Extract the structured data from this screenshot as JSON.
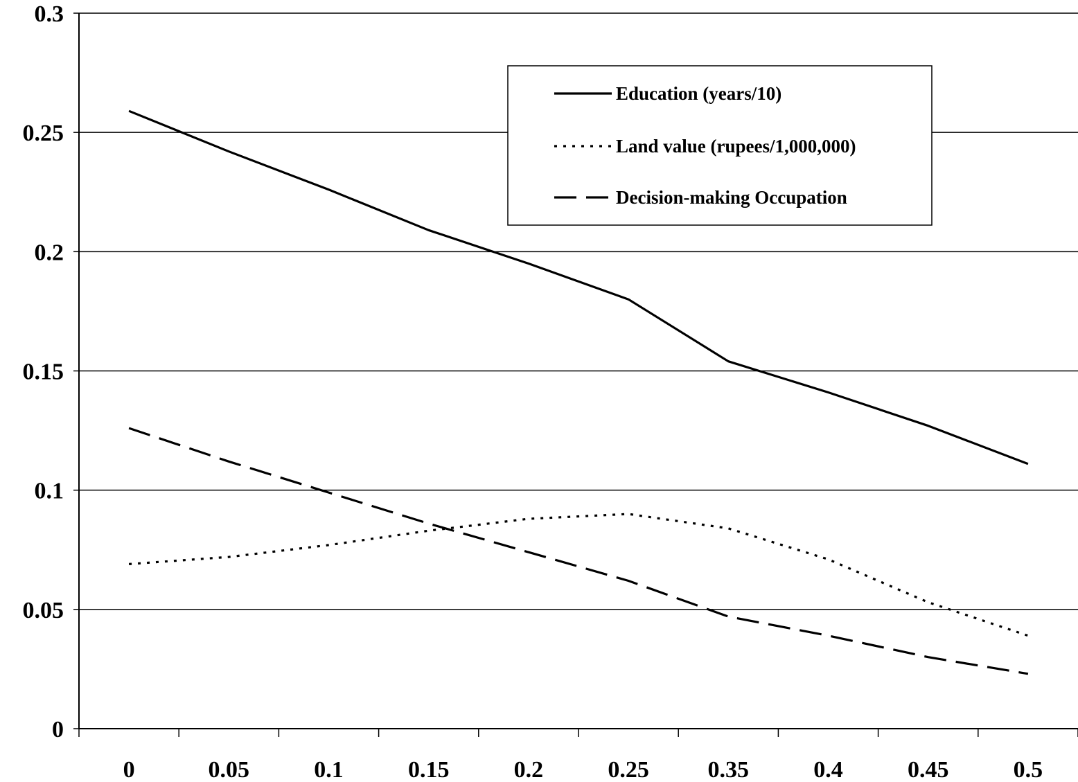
{
  "chart_data": {
    "type": "line",
    "title": "",
    "xlabel": "",
    "ylabel": "",
    "categories": [
      "0",
      "0.05",
      "0.1",
      "0.15",
      "0.2",
      "0.25",
      "0.35",
      "0.4",
      "0.45",
      "0.5"
    ],
    "yticks": [
      "0",
      "0.05",
      "0.1",
      "0.15",
      "0.2",
      "0.25",
      "0.3"
    ],
    "ylim": [
      0,
      0.3
    ],
    "grid": "horizontal",
    "legend_position": "top-right",
    "series": [
      {
        "name": "Education (years/10)",
        "style": "solid",
        "color": "#000000",
        "values": [
          0.259,
          0.242,
          0.226,
          0.209,
          0.195,
          0.18,
          0.154,
          0.141,
          0.127,
          0.111
        ]
      },
      {
        "name": "Land value (rupees/1,000,000)",
        "style": "dotted",
        "color": "#000000",
        "values": [
          0.069,
          0.072,
          0.077,
          0.083,
          0.088,
          0.09,
          0.084,
          0.071,
          0.053,
          0.039
        ]
      },
      {
        "name": "Decision-making Occupation",
        "style": "dashed",
        "color": "#000000",
        "values": [
          0.126,
          0.112,
          0.099,
          0.086,
          0.074,
          0.062,
          0.047,
          0.039,
          0.03,
          0.023
        ]
      }
    ]
  }
}
